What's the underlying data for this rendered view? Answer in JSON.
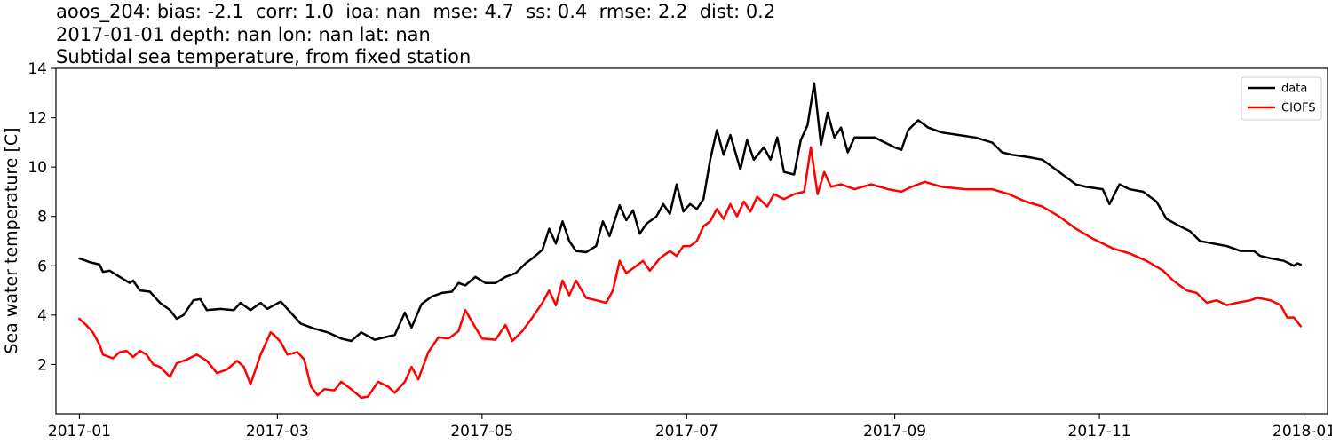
{
  "chart_data": {
    "type": "line",
    "title_lines": [
      "aoos_204: bias: -2.1  corr: 1.0  ioa: nan  mse: 4.7  ss: 0.4  rmse: 2.2  dist: 0.2",
      "2017-01-01 depth: nan lon: nan lat: nan",
      "Subtidal sea temperature, from fixed station"
    ],
    "xlabel": "",
    "ylabel": "Sea water temperature [C]",
    "xlim": [
      "2016-12-25",
      "2018-01-08"
    ],
    "ylim": [
      0,
      14
    ],
    "x_ticks": [
      "2017-01",
      "2017-03",
      "2017-05",
      "2017-07",
      "2017-09",
      "2017-11",
      "2018-01"
    ],
    "y_ticks": [
      2,
      4,
      6,
      8,
      10,
      12,
      14
    ],
    "grid": false,
    "legend": "upper right",
    "series": [
      {
        "name": "data",
        "color": "#000000",
        "points": [
          [
            "2017-01-01",
            6.3
          ],
          [
            "2017-01-04",
            6.15
          ],
          [
            "2017-01-07",
            6.05
          ],
          [
            "2017-01-08",
            5.75
          ],
          [
            "2017-01-10",
            5.8
          ],
          [
            "2017-01-13",
            5.55
          ],
          [
            "2017-01-16",
            5.3
          ],
          [
            "2017-01-17",
            5.4
          ],
          [
            "2017-01-19",
            5.0
          ],
          [
            "2017-01-22",
            4.95
          ],
          [
            "2017-01-25",
            4.5
          ],
          [
            "2017-01-28",
            4.2
          ],
          [
            "2017-01-30",
            3.85
          ],
          [
            "2017-02-01",
            4.0
          ],
          [
            "2017-02-04",
            4.6
          ],
          [
            "2017-02-06",
            4.65
          ],
          [
            "2017-02-08",
            4.2
          ],
          [
            "2017-02-12",
            4.25
          ],
          [
            "2017-02-16",
            4.2
          ],
          [
            "2017-02-18",
            4.5
          ],
          [
            "2017-02-21",
            4.2
          ],
          [
            "2017-02-24",
            4.5
          ],
          [
            "2017-02-26",
            4.25
          ],
          [
            "2017-02-28",
            4.4
          ],
          [
            "2017-03-02",
            4.55
          ],
          [
            "2017-03-05",
            4.1
          ],
          [
            "2017-03-08",
            3.65
          ],
          [
            "2017-03-12",
            3.45
          ],
          [
            "2017-03-16",
            3.3
          ],
          [
            "2017-03-20",
            3.05
          ],
          [
            "2017-03-23",
            2.95
          ],
          [
            "2017-03-26",
            3.3
          ],
          [
            "2017-03-30",
            3.0
          ],
          [
            "2017-04-02",
            3.1
          ],
          [
            "2017-04-05",
            3.2
          ],
          [
            "2017-04-08",
            4.1
          ],
          [
            "2017-04-10",
            3.5
          ],
          [
            "2017-04-13",
            4.45
          ],
          [
            "2017-04-16",
            4.75
          ],
          [
            "2017-04-19",
            4.9
          ],
          [
            "2017-04-22",
            4.95
          ],
          [
            "2017-04-24",
            5.3
          ],
          [
            "2017-04-26",
            5.2
          ],
          [
            "2017-04-29",
            5.55
          ],
          [
            "2017-05-02",
            5.3
          ],
          [
            "2017-05-05",
            5.3
          ],
          [
            "2017-05-08",
            5.55
          ],
          [
            "2017-05-11",
            5.7
          ],
          [
            "2017-05-14",
            6.1
          ],
          [
            "2017-05-16",
            6.3
          ],
          [
            "2017-05-19",
            6.65
          ],
          [
            "2017-05-21",
            7.5
          ],
          [
            "2017-05-23",
            6.9
          ],
          [
            "2017-05-25",
            7.8
          ],
          [
            "2017-05-27",
            7.0
          ],
          [
            "2017-05-29",
            6.6
          ],
          [
            "2017-06-01",
            6.55
          ],
          [
            "2017-06-04",
            6.8
          ],
          [
            "2017-06-06",
            7.8
          ],
          [
            "2017-06-08",
            7.2
          ],
          [
            "2017-06-11",
            8.45
          ],
          [
            "2017-06-13",
            7.85
          ],
          [
            "2017-06-15",
            8.25
          ],
          [
            "2017-06-17",
            7.3
          ],
          [
            "2017-06-19",
            7.7
          ],
          [
            "2017-06-22",
            8.0
          ],
          [
            "2017-06-24",
            8.5
          ],
          [
            "2017-06-26",
            8.1
          ],
          [
            "2017-06-28",
            9.3
          ],
          [
            "2017-06-30",
            8.2
          ],
          [
            "2017-07-02",
            8.5
          ],
          [
            "2017-07-04",
            8.3
          ],
          [
            "2017-07-06",
            8.7
          ],
          [
            "2017-07-08",
            10.3
          ],
          [
            "2017-07-10",
            11.5
          ],
          [
            "2017-07-12",
            10.5
          ],
          [
            "2017-07-14",
            11.3
          ],
          [
            "2017-07-17",
            9.9
          ],
          [
            "2017-07-19",
            11.1
          ],
          [
            "2017-07-21",
            10.3
          ],
          [
            "2017-07-24",
            10.8
          ],
          [
            "2017-07-26",
            10.3
          ],
          [
            "2017-07-28",
            11.2
          ],
          [
            "2017-07-30",
            9.8
          ],
          [
            "2017-08-02",
            9.7
          ],
          [
            "2017-08-04",
            11.1
          ],
          [
            "2017-08-06",
            11.7
          ],
          [
            "2017-08-08",
            13.4
          ],
          [
            "2017-08-10",
            10.9
          ],
          [
            "2017-08-12",
            12.2
          ],
          [
            "2017-08-14",
            11.2
          ],
          [
            "2017-08-16",
            11.6
          ],
          [
            "2017-08-18",
            10.6
          ],
          [
            "2017-08-20",
            11.2
          ],
          [
            "2017-08-23",
            11.2
          ],
          [
            "2017-08-26",
            11.2
          ],
          [
            "2017-08-29",
            11.0
          ],
          [
            "2017-09-01",
            10.8
          ],
          [
            "2017-09-03",
            10.7
          ],
          [
            "2017-09-05",
            11.5
          ],
          [
            "2017-09-08",
            11.9
          ],
          [
            "2017-09-11",
            11.6
          ],
          [
            "2017-09-15",
            11.4
          ],
          [
            "2017-09-20",
            11.3
          ],
          [
            "2017-09-25",
            11.2
          ],
          [
            "2017-09-30",
            11.0
          ],
          [
            "2017-10-03",
            10.6
          ],
          [
            "2017-10-06",
            10.5
          ],
          [
            "2017-10-11",
            10.4
          ],
          [
            "2017-10-15",
            10.3
          ],
          [
            "2017-10-18",
            10.0
          ],
          [
            "2017-10-21",
            9.7
          ],
          [
            "2017-10-25",
            9.3
          ],
          [
            "2017-10-28",
            9.2
          ],
          [
            "2017-11-02",
            9.1
          ],
          [
            "2017-11-04",
            8.5
          ],
          [
            "2017-11-07",
            9.3
          ],
          [
            "2017-11-10",
            9.1
          ],
          [
            "2017-11-14",
            9.0
          ],
          [
            "2017-11-18",
            8.6
          ],
          [
            "2017-11-21",
            7.9
          ],
          [
            "2017-11-25",
            7.6
          ],
          [
            "2017-11-28",
            7.4
          ],
          [
            "2017-12-01",
            7.0
          ],
          [
            "2017-12-05",
            6.9
          ],
          [
            "2017-12-09",
            6.8
          ],
          [
            "2017-12-13",
            6.6
          ],
          [
            "2017-12-17",
            6.6
          ],
          [
            "2017-12-19",
            6.4
          ],
          [
            "2017-12-22",
            6.3
          ],
          [
            "2017-12-26",
            6.2
          ],
          [
            "2017-12-29",
            6.0
          ],
          [
            "2017-12-30",
            6.1
          ],
          [
            "2017-12-31",
            6.05
          ]
        ]
      },
      {
        "name": "CIOFS",
        "color": "#ff0000",
        "points": [
          [
            "2017-01-01",
            3.85
          ],
          [
            "2017-01-03",
            3.6
          ],
          [
            "2017-01-05",
            3.3
          ],
          [
            "2017-01-07",
            2.8
          ],
          [
            "2017-01-08",
            2.4
          ],
          [
            "2017-01-11",
            2.25
          ],
          [
            "2017-01-13",
            2.5
          ],
          [
            "2017-01-15",
            2.55
          ],
          [
            "2017-01-17",
            2.3
          ],
          [
            "2017-01-19",
            2.55
          ],
          [
            "2017-01-21",
            2.4
          ],
          [
            "2017-01-23",
            2.0
          ],
          [
            "2017-01-25",
            1.9
          ],
          [
            "2017-01-28",
            1.5
          ],
          [
            "2017-01-30",
            2.05
          ],
          [
            "2017-02-02",
            2.2
          ],
          [
            "2017-02-05",
            2.4
          ],
          [
            "2017-02-08",
            2.15
          ],
          [
            "2017-02-11",
            1.65
          ],
          [
            "2017-02-14",
            1.8
          ],
          [
            "2017-02-17",
            2.15
          ],
          [
            "2017-02-19",
            1.9
          ],
          [
            "2017-02-21",
            1.2
          ],
          [
            "2017-02-24",
            2.4
          ],
          [
            "2017-02-27",
            3.3
          ],
          [
            "2017-02-28",
            3.2
          ],
          [
            "2017-03-02",
            2.9
          ],
          [
            "2017-03-04",
            2.4
          ],
          [
            "2017-03-07",
            2.5
          ],
          [
            "2017-03-09",
            2.2
          ],
          [
            "2017-03-11",
            1.1
          ],
          [
            "2017-03-13",
            0.75
          ],
          [
            "2017-03-15",
            1.0
          ],
          [
            "2017-03-18",
            0.95
          ],
          [
            "2017-03-20",
            1.3
          ],
          [
            "2017-03-23",
            1.0
          ],
          [
            "2017-03-26",
            0.65
          ],
          [
            "2017-03-28",
            0.7
          ],
          [
            "2017-03-31",
            1.3
          ],
          [
            "2017-04-03",
            1.1
          ],
          [
            "2017-04-05",
            0.85
          ],
          [
            "2017-04-08",
            1.3
          ],
          [
            "2017-04-10",
            1.9
          ],
          [
            "2017-04-12",
            1.4
          ],
          [
            "2017-04-15",
            2.5
          ],
          [
            "2017-04-18",
            3.1
          ],
          [
            "2017-04-21",
            3.05
          ],
          [
            "2017-04-24",
            3.35
          ],
          [
            "2017-04-26",
            4.2
          ],
          [
            "2017-04-29",
            3.5
          ],
          [
            "2017-05-01",
            3.05
          ],
          [
            "2017-05-05",
            3.0
          ],
          [
            "2017-05-08",
            3.6
          ],
          [
            "2017-05-10",
            2.95
          ],
          [
            "2017-05-13",
            3.35
          ],
          [
            "2017-05-16",
            3.9
          ],
          [
            "2017-05-19",
            4.5
          ],
          [
            "2017-05-21",
            5.0
          ],
          [
            "2017-05-23",
            4.4
          ],
          [
            "2017-05-25",
            5.4
          ],
          [
            "2017-05-27",
            4.8
          ],
          [
            "2017-05-29",
            5.4
          ],
          [
            "2017-06-01",
            4.7
          ],
          [
            "2017-06-04",
            4.6
          ],
          [
            "2017-06-07",
            4.5
          ],
          [
            "2017-06-09",
            5.0
          ],
          [
            "2017-06-11",
            6.2
          ],
          [
            "2017-06-13",
            5.7
          ],
          [
            "2017-06-15",
            5.9
          ],
          [
            "2017-06-18",
            6.2
          ],
          [
            "2017-06-20",
            5.8
          ],
          [
            "2017-06-23",
            6.3
          ],
          [
            "2017-06-26",
            6.6
          ],
          [
            "2017-06-28",
            6.4
          ],
          [
            "2017-06-30",
            6.8
          ],
          [
            "2017-07-02",
            6.8
          ],
          [
            "2017-07-04",
            7.0
          ],
          [
            "2017-07-06",
            7.6
          ],
          [
            "2017-07-08",
            7.8
          ],
          [
            "2017-07-10",
            8.3
          ],
          [
            "2017-07-12",
            7.9
          ],
          [
            "2017-07-14",
            8.5
          ],
          [
            "2017-07-16",
            8.0
          ],
          [
            "2017-07-18",
            8.6
          ],
          [
            "2017-07-20",
            8.2
          ],
          [
            "2017-07-22",
            8.8
          ],
          [
            "2017-07-25",
            8.4
          ],
          [
            "2017-07-27",
            8.9
          ],
          [
            "2017-07-30",
            8.7
          ],
          [
            "2017-08-02",
            8.9
          ],
          [
            "2017-08-05",
            9.0
          ],
          [
            "2017-08-07",
            10.8
          ],
          [
            "2017-08-09",
            8.9
          ],
          [
            "2017-08-11",
            9.8
          ],
          [
            "2017-08-13",
            9.2
          ],
          [
            "2017-08-16",
            9.3
          ],
          [
            "2017-08-20",
            9.1
          ],
          [
            "2017-08-25",
            9.3
          ],
          [
            "2017-08-30",
            9.1
          ],
          [
            "2017-09-03",
            9.0
          ],
          [
            "2017-09-06",
            9.2
          ],
          [
            "2017-09-10",
            9.4
          ],
          [
            "2017-09-15",
            9.2
          ],
          [
            "2017-09-22",
            9.1
          ],
          [
            "2017-09-30",
            9.1
          ],
          [
            "2017-10-05",
            8.9
          ],
          [
            "2017-10-10",
            8.6
          ],
          [
            "2017-10-15",
            8.4
          ],
          [
            "2017-10-20",
            8.0
          ],
          [
            "2017-10-25",
            7.5
          ],
          [
            "2017-10-30",
            7.1
          ],
          [
            "2017-11-05",
            6.7
          ],
          [
            "2017-11-10",
            6.5
          ],
          [
            "2017-11-15",
            6.2
          ],
          [
            "2017-11-20",
            5.8
          ],
          [
            "2017-11-23",
            5.4
          ],
          [
            "2017-11-27",
            5.0
          ],
          [
            "2017-11-30",
            4.9
          ],
          [
            "2017-12-03",
            4.5
          ],
          [
            "2017-12-06",
            4.6
          ],
          [
            "2017-12-09",
            4.4
          ],
          [
            "2017-12-12",
            4.5
          ],
          [
            "2017-12-16",
            4.6
          ],
          [
            "2017-12-18",
            4.7
          ],
          [
            "2017-12-22",
            4.6
          ],
          [
            "2017-12-25",
            4.4
          ],
          [
            "2017-12-27",
            3.9
          ],
          [
            "2017-12-29",
            3.9
          ],
          [
            "2017-12-31",
            3.55
          ]
        ]
      }
    ]
  }
}
